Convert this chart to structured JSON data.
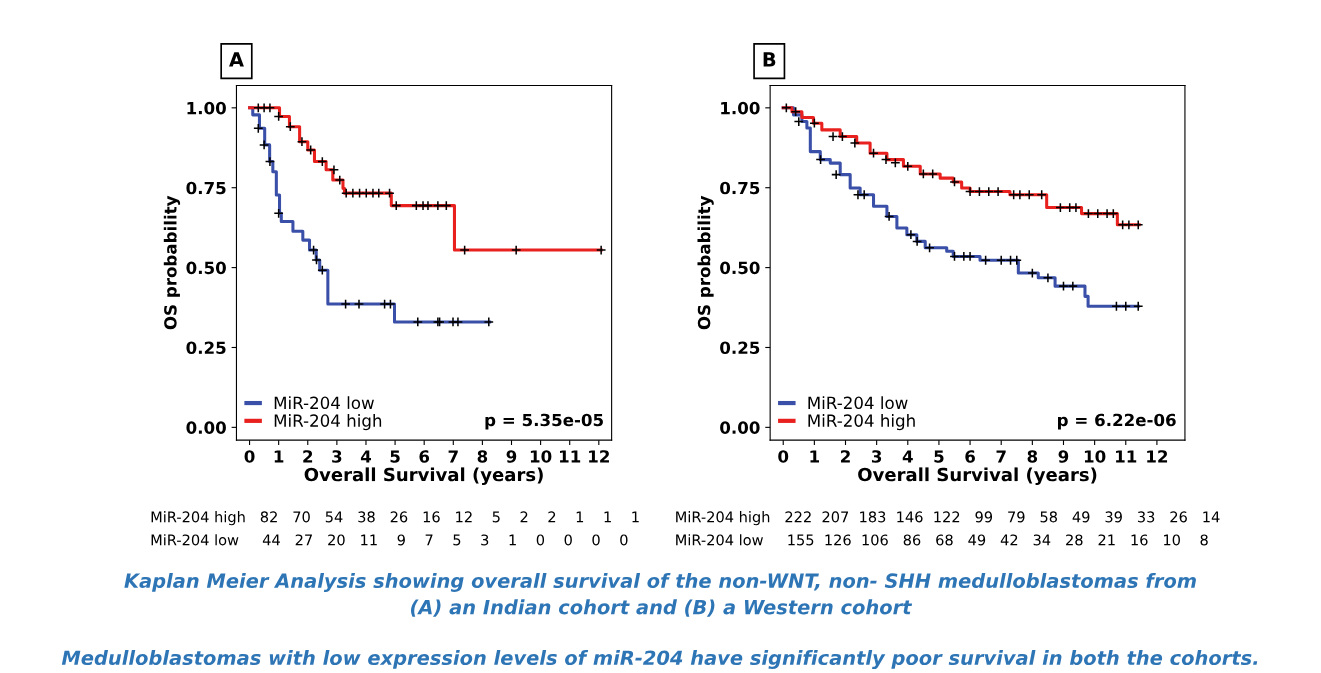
{
  "chart_data": [
    {
      "type": "step",
      "title": "A",
      "xlabel": "Overall Survival (years)",
      "ylabel": "OS probability",
      "xlim": [
        -0.45,
        12.44
      ],
      "ylim": [
        -0.04,
        1.07
      ],
      "xticks": [
        0,
        1,
        2,
        3,
        4,
        5,
        6,
        7,
        8,
        9,
        10,
        11,
        12
      ],
      "yticks": [
        {
          "value": 0,
          "label": "0.00"
        },
        {
          "value": 0.25,
          "label": "0.25"
        },
        {
          "value": 0.5,
          "label": "0.50"
        },
        {
          "value": 0.75,
          "label": "0.75"
        },
        {
          "value": 1,
          "label": "1.00"
        }
      ],
      "grid": false,
      "legend": "bottom left",
      "line_style": "solid",
      "series": [
        {
          "name": "MiR-204 low",
          "color": "#3a4fa8",
          "x": [
            0,
            0.11,
            0.34,
            0.52,
            0.69,
            0.8,
            0.92,
            1.03,
            1.09,
            1.49,
            1.83,
            2.06,
            2.29,
            2.41,
            2.69,
            4.98,
            8.25
          ],
          "values": [
            1.0,
            0.978,
            0.936,
            0.884,
            0.832,
            0.8,
            0.727,
            0.67,
            0.644,
            0.614,
            0.586,
            0.555,
            0.524,
            0.492,
            0.386,
            0.33,
            0.33
          ]
        },
        {
          "name": "MiR-204 high",
          "color": "#e8201e",
          "x": [
            0,
            0.75,
            1.03,
            1.37,
            1.72,
            2.0,
            2.23,
            2.63,
            2.86,
            3.21,
            3.26,
            4.87,
            7.04,
            12.08
          ],
          "values": [
            1.0,
            1.0,
            0.973,
            0.941,
            0.894,
            0.868,
            0.832,
            0.806,
            0.774,
            0.748,
            0.733,
            0.694,
            0.555,
            0.555
          ]
        },
        {
          "type": "scatter",
          "marker": "cross",
          "color": "#000000",
          "x": [
            0.3,
            0.5,
            0.7,
            1.0,
            2.2,
            2.3,
            2.5,
            3.3,
            3.76,
            4.64,
            4.84,
            5.78,
            6.47,
            6.53,
            6.99,
            7.16,
            8.22
          ],
          "values": [
            0.936,
            0.884,
            0.832,
            0.67,
            0.555,
            0.524,
            0.492,
            0.386,
            0.386,
            0.386,
            0.386,
            0.33,
            0.33,
            0.33,
            0.33,
            0.33,
            0.33
          ]
        },
        {
          "type": "scatter",
          "marker": "cross",
          "color": "#000000",
          "x": [
            0.3,
            0.5,
            0.7,
            1.0,
            1.4,
            1.8,
            2.1,
            2.5,
            2.9,
            3.1,
            3.32,
            3.55,
            3.78,
            4.01,
            4.24,
            4.44,
            4.81,
            5.04,
            5.73,
            5.96,
            6.13,
            6.47,
            6.76,
            7.39,
            9.16,
            12.08
          ],
          "values": [
            1.0,
            1.0,
            1.0,
            0.973,
            0.941,
            0.894,
            0.868,
            0.832,
            0.806,
            0.774,
            0.733,
            0.733,
            0.733,
            0.733,
            0.733,
            0.733,
            0.733,
            0.694,
            0.694,
            0.694,
            0.694,
            0.694,
            0.694,
            0.555,
            0.555,
            0.555
          ]
        }
      ],
      "annotations": [
        "p = 5.35e-05",
        "MiR-204 high   82   70   54   38   26   16   12    5    2    2    1    1    1",
        "MiR-204 low     44   27   20   11    9    7    5    3    1    0    0    0    0"
      ]
    },
    {
      "type": "step",
      "title": "B",
      "xlabel": "Overall Survival (years)",
      "ylabel": "OS probability",
      "xlim": [
        -0.42,
        12.9
      ],
      "ylim": [
        -0.04,
        1.07
      ],
      "xticks": [
        0,
        1,
        2,
        3,
        4,
        5,
        6,
        7,
        8,
        9,
        10,
        11,
        12
      ],
      "yticks": [
        {
          "value": 0,
          "label": "0.00"
        },
        {
          "value": 0.25,
          "label": "0.25"
        },
        {
          "value": 0.5,
          "label": "0.50"
        },
        {
          "value": 0.75,
          "label": "0.75"
        },
        {
          "value": 1,
          "label": "1.00"
        }
      ],
      "grid": false,
      "legend": "bottom left",
      "line_style": "solid",
      "series": [
        {
          "name": "MiR-204 low",
          "color": "#3a4fa8",
          "x": [
            0,
            0.33,
            0.6,
            0.76,
            0.87,
            1.19,
            1.51,
            1.83,
            2.15,
            2.47,
            2.9,
            3.33,
            3.65,
            3.97,
            4.29,
            4.56,
            5.25,
            5.46,
            6.32,
            7.55,
            8.19,
            8.73,
            9.69,
            9.79,
            11.4
          ],
          "values": [
            1.0,
            0.978,
            0.957,
            0.937,
            0.863,
            0.838,
            0.827,
            0.791,
            0.749,
            0.728,
            0.692,
            0.66,
            0.624,
            0.603,
            0.582,
            0.562,
            0.551,
            0.535,
            0.523,
            0.483,
            0.468,
            0.442,
            0.41,
            0.379,
            0.379
          ]
        },
        {
          "name": "MiR-204 high",
          "color": "#e8201e",
          "x": [
            0,
            0.28,
            0.6,
            0.97,
            1.24,
            1.83,
            2.36,
            2.79,
            3.33,
            3.86,
            4.4,
            5.04,
            5.46,
            5.73,
            6.0,
            7.28,
            8.46,
            9.58,
            10.73,
            11.43
          ],
          "values": [
            1.0,
            0.988,
            0.97,
            0.952,
            0.931,
            0.91,
            0.89,
            0.858,
            0.838,
            0.817,
            0.793,
            0.78,
            0.768,
            0.749,
            0.738,
            0.728,
            0.688,
            0.669,
            0.634,
            0.634
          ]
        },
        {
          "type": "scatter",
          "marker": "cross",
          "color": "#000000",
          "x": [
            0.5,
            1.2,
            1.7,
            2.4,
            2.6,
            3.4,
            4.1,
            4.3,
            4.7,
            5.5,
            5.8,
            6.0,
            6.5,
            7.0,
            7.3,
            7.5,
            8.0,
            8.5,
            9.0,
            9.3,
            10.7,
            11.0,
            11.4
          ],
          "values": [
            0.957,
            0.838,
            0.791,
            0.728,
            0.728,
            0.66,
            0.603,
            0.582,
            0.562,
            0.535,
            0.535,
            0.535,
            0.523,
            0.523,
            0.523,
            0.523,
            0.483,
            0.468,
            0.442,
            0.442,
            0.379,
            0.379,
            0.379
          ]
        },
        {
          "type": "scatter",
          "marker": "cross",
          "color": "#000000",
          "x": [
            0.1,
            0.4,
            1.0,
            1.6,
            1.9,
            2.3,
            2.9,
            3.3,
            3.6,
            4.0,
            4.5,
            4.8,
            5.5,
            6.0,
            6.3,
            6.6,
            6.9,
            7.4,
            7.6,
            7.9,
            8.3,
            8.9,
            9.2,
            9.4,
            9.8,
            10.1,
            10.4,
            10.6,
            10.9,
            11.1,
            11.4
          ],
          "values": [
            1.0,
            0.988,
            0.952,
            0.91,
            0.91,
            0.89,
            0.858,
            0.838,
            0.828,
            0.817,
            0.793,
            0.793,
            0.768,
            0.738,
            0.738,
            0.738,
            0.738,
            0.728,
            0.728,
            0.728,
            0.728,
            0.688,
            0.688,
            0.688,
            0.669,
            0.669,
            0.669,
            0.669,
            0.634,
            0.634,
            0.634
          ]
        }
      ],
      "annotations": [
        "p = 6.22e-06",
        "MiR-204 high   222  207  183  146  122   99   79   58   49   39   33   26   14",
        "MiR-204 low     155  126  106   86   68   49   42   34   28   21   16   10    8",
        "Kaplan Meier Analysis showing overall survival of the non-WNT, non- SHH medulloblastomas from\n(A) an Indian cohort and (B) a Western cohort",
        "Medulloblastomas with low expression levels of miR-204 have significantly poor survival in both the cohorts."
      ]
    }
  ]
}
